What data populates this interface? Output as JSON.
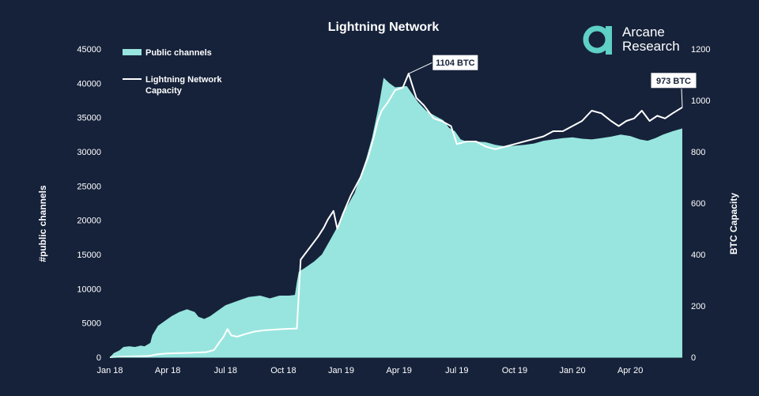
{
  "chart_data": {
    "type": "area",
    "title": "Lightning Network",
    "ylabel_left": "#public channels",
    "ylabel_right": "BTC Capacity",
    "x_ticks": [
      "Jan 18",
      "Apr 18",
      "Jul 18",
      "Oct 18",
      "Jan 19",
      "Apr 19",
      "Jul 19",
      "Oct 19",
      "Jan 20",
      "Apr 20"
    ],
    "y_left_ticks": [
      "0",
      "5000",
      "10000",
      "15000",
      "20000",
      "25000",
      "30000",
      "35000",
      "40000",
      "45000"
    ],
    "y_right_ticks": [
      "0",
      "200",
      "400",
      "600",
      "800",
      "1000",
      "1200"
    ],
    "ylim_left": [
      0,
      45000
    ],
    "ylim_right": [
      0,
      1200
    ],
    "x_range_months": [
      0,
      29.7
    ],
    "series": [
      {
        "name": "Public channels",
        "kind": "area",
        "color": "#98e5df",
        "axis": "left",
        "points": [
          [
            0,
            0
          ],
          [
            0.2,
            600
          ],
          [
            0.5,
            1000
          ],
          [
            0.7,
            1500
          ],
          [
            1,
            1600
          ],
          [
            1.3,
            1500
          ],
          [
            1.6,
            1700
          ],
          [
            1.8,
            1600
          ],
          [
            2.1,
            2100
          ],
          [
            2.2,
            3200
          ],
          [
            2.5,
            4600
          ],
          [
            2.8,
            5200
          ],
          [
            3.2,
            6000
          ],
          [
            3.6,
            6600
          ],
          [
            4,
            7000
          ],
          [
            4.4,
            6600
          ],
          [
            4.6,
            5900
          ],
          [
            4.9,
            5600
          ],
          [
            5.2,
            6000
          ],
          [
            5.5,
            6600
          ],
          [
            6,
            7600
          ],
          [
            6.6,
            8200
          ],
          [
            7.2,
            8800
          ],
          [
            7.8,
            9000
          ],
          [
            8.3,
            8600
          ],
          [
            8.8,
            9000
          ],
          [
            9.3,
            9000
          ],
          [
            9.6,
            9100
          ],
          [
            9.7,
            11000
          ],
          [
            9.8,
            12500
          ],
          [
            10.1,
            13000
          ],
          [
            10.6,
            14000
          ],
          [
            11,
            15000
          ],
          [
            11.4,
            17000
          ],
          [
            11.8,
            19000
          ],
          [
            12.1,
            21000
          ],
          [
            12.4,
            22500
          ],
          [
            12.7,
            24000
          ],
          [
            13,
            26500
          ],
          [
            13.3,
            29000
          ],
          [
            13.6,
            32000
          ],
          [
            13.9,
            36000
          ],
          [
            14,
            37500
          ],
          [
            14.2,
            40800
          ],
          [
            14.5,
            40000
          ],
          [
            14.8,
            39400
          ],
          [
            15.1,
            39500
          ],
          [
            15.4,
            39600
          ],
          [
            15.8,
            38000
          ],
          [
            16,
            37200
          ],
          [
            16.4,
            36000
          ],
          [
            16.9,
            35200
          ],
          [
            17.3,
            34600
          ],
          [
            17.6,
            33500
          ],
          [
            17.9,
            33000
          ],
          [
            18.2,
            31800
          ],
          [
            18.5,
            31500
          ],
          [
            19,
            31500
          ],
          [
            19.5,
            31400
          ],
          [
            20,
            31000
          ],
          [
            20.5,
            30800
          ],
          [
            21,
            30900
          ],
          [
            21.5,
            31000
          ],
          [
            22,
            31200
          ],
          [
            22.5,
            31600
          ],
          [
            23,
            31800
          ],
          [
            23.5,
            32000
          ],
          [
            24,
            32100
          ],
          [
            24.5,
            31900
          ],
          [
            25,
            31800
          ],
          [
            25.5,
            32000
          ],
          [
            26,
            32200
          ],
          [
            26.5,
            32500
          ],
          [
            27,
            32300
          ],
          [
            27.5,
            31800
          ],
          [
            27.9,
            31600
          ],
          [
            28.3,
            32000
          ],
          [
            28.7,
            32500
          ],
          [
            29.2,
            33000
          ],
          [
            29.7,
            33400
          ]
        ]
      },
      {
        "name": "Lightning Network Capacity",
        "kind": "line",
        "color": "#ffffff",
        "axis": "right",
        "points": [
          [
            0,
            0
          ],
          [
            0.5,
            2
          ],
          [
            1,
            3
          ],
          [
            1.5,
            4
          ],
          [
            2,
            5
          ],
          [
            2.5,
            12
          ],
          [
            3,
            15
          ],
          [
            4,
            17
          ],
          [
            5,
            20
          ],
          [
            5.4,
            28
          ],
          [
            5.7,
            60
          ],
          [
            5.9,
            80
          ],
          [
            6.1,
            110
          ],
          [
            6.3,
            85
          ],
          [
            6.6,
            80
          ],
          [
            7,
            90
          ],
          [
            7.5,
            100
          ],
          [
            8,
            105
          ],
          [
            9,
            110
          ],
          [
            9.7,
            112
          ],
          [
            9.9,
            380
          ],
          [
            10.4,
            430
          ],
          [
            10.8,
            470
          ],
          [
            11.1,
            505
          ],
          [
            11.3,
            535
          ],
          [
            11.6,
            570
          ],
          [
            11.8,
            500
          ],
          [
            12.1,
            560
          ],
          [
            12.5,
            630
          ],
          [
            13,
            700
          ],
          [
            13.4,
            780
          ],
          [
            13.7,
            860
          ],
          [
            13.9,
            920
          ],
          [
            14.1,
            960
          ],
          [
            14.4,
            990
          ],
          [
            14.8,
            1040
          ],
          [
            15.2,
            1050
          ],
          [
            15.5,
            1104
          ],
          [
            15.9,
            1010
          ],
          [
            16.3,
            980
          ],
          [
            16.8,
            930
          ],
          [
            17.2,
            920
          ],
          [
            17.7,
            900
          ],
          [
            18,
            830
          ],
          [
            18.5,
            840
          ],
          [
            19,
            840
          ],
          [
            19.5,
            820
          ],
          [
            20,
            810
          ],
          [
            20.5,
            820
          ],
          [
            21,
            830
          ],
          [
            21.5,
            840
          ],
          [
            22,
            850
          ],
          [
            22.5,
            860
          ],
          [
            23,
            880
          ],
          [
            23.5,
            880
          ],
          [
            24,
            900
          ],
          [
            24.5,
            920
          ],
          [
            25,
            960
          ],
          [
            25.5,
            950
          ],
          [
            26,
            920
          ],
          [
            26.4,
            900
          ],
          [
            26.8,
            920
          ],
          [
            27.2,
            930
          ],
          [
            27.6,
            960
          ],
          [
            28,
            920
          ],
          [
            28.4,
            940
          ],
          [
            28.8,
            930
          ],
          [
            29.2,
            950
          ],
          [
            29.7,
            973
          ]
        ]
      }
    ],
    "annotations": [
      {
        "text": "1104 BTC",
        "x": 15.5,
        "y": 1104,
        "axis": "right"
      },
      {
        "text": "973 BTC",
        "x": 29.7,
        "y": 973,
        "axis": "right"
      }
    ],
    "legend": {
      "placement": "top-left"
    }
  },
  "brand": {
    "line1": "Arcane",
    "line2": "Research",
    "color": "#5fd0c6"
  }
}
